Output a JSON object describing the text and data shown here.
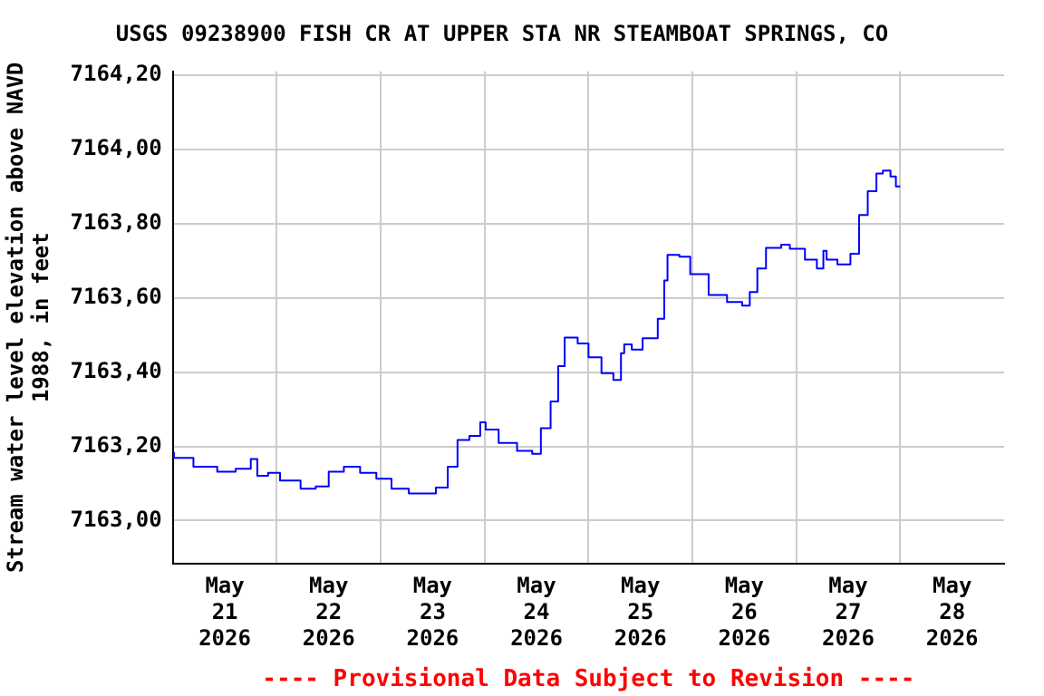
{
  "chart_data": {
    "type": "step",
    "title": "USGS 09238900 FISH CR AT UPPER STA NR STEAMBOAT SPRINGS, CO",
    "ylabel": "Stream water level elevation above NAVD 1988, in feet",
    "annotations": [
      "---- Provisional Data Subject to Revision ----"
    ],
    "x": [
      "2026-05-21T00:15",
      "2026-05-21T04:45",
      "2026-05-21T10:15",
      "2026-05-21T14:30",
      "2026-05-21T18:00",
      "2026-05-21T19:30",
      "2026-05-21T22:00",
      "2026-05-22T00:45",
      "2026-05-22T05:30",
      "2026-05-22T09:00",
      "2026-05-22T12:00",
      "2026-05-22T15:30",
      "2026-05-22T19:15",
      "2026-05-22T23:00",
      "2026-05-23T02:30",
      "2026-05-23T06:30",
      "2026-05-23T12:45",
      "2026-05-23T15:30",
      "2026-05-23T17:45",
      "2026-05-23T20:30",
      "2026-05-23T23:00",
      "2026-05-24T00:15",
      "2026-05-24T03:15",
      "2026-05-24T07:30",
      "2026-05-24T11:00",
      "2026-05-24T13:00",
      "2026-05-24T15:15",
      "2026-05-24T17:00",
      "2026-05-24T18:30",
      "2026-05-24T21:30",
      "2026-05-25T00:00",
      "2026-05-25T03:00",
      "2026-05-25T05:45",
      "2026-05-25T07:30",
      "2026-05-25T08:15",
      "2026-05-25T10:00",
      "2026-05-25T12:30",
      "2026-05-25T16:00",
      "2026-05-25T17:30",
      "2026-05-25T18:15",
      "2026-05-25T21:00",
      "2026-05-25T23:30",
      "2026-05-26T03:45",
      "2026-05-26T08:00",
      "2026-05-26T11:30",
      "2026-05-26T13:15",
      "2026-05-26T15:00",
      "2026-05-26T17:00",
      "2026-05-26T20:30",
      "2026-05-26T22:30",
      "2026-05-27T02:00",
      "2026-05-27T04:45",
      "2026-05-27T06:15",
      "2026-05-27T07:00",
      "2026-05-27T09:30",
      "2026-05-27T12:30",
      "2026-05-27T14:30",
      "2026-05-27T16:30",
      "2026-05-27T18:30",
      "2026-05-27T20:00",
      "2026-05-27T21:45",
      "2026-05-27T23:00",
      "2026-05-28T00:00"
    ],
    "series": [
      {
        "color": "#0000ff",
        "values": [
          7163.185,
          7163.169,
          7163.145,
          7163.132,
          7163.14,
          7163.166,
          7163.121,
          7163.129,
          7163.108,
          7163.086,
          7163.092,
          7163.132,
          7163.145,
          7163.129,
          7163.113,
          7163.086,
          7163.073,
          7163.089,
          7163.145,
          7163.217,
          7163.228,
          7163.265,
          7163.245,
          7163.209,
          7163.188,
          7163.18,
          7163.249,
          7163.321,
          7163.416,
          7163.493,
          7163.477,
          7163.44,
          7163.397,
          7163.379,
          7163.451,
          7163.475,
          7163.461,
          7163.491,
          7163.544,
          7163.647,
          7163.716,
          7163.711,
          7163.664,
          7163.608,
          7163.589,
          7163.579,
          7163.616,
          7163.679,
          7163.735,
          7163.743,
          7163.732,
          7163.703,
          7163.679,
          7163.727,
          7163.703,
          7163.69,
          7163.719,
          7163.823,
          7163.887,
          7163.935,
          7163.943,
          7163.927,
          7163.9
        ]
      }
    ],
    "xlim": [
      "2026-05-21T00:00",
      "2026-05-29T00:00"
    ],
    "xticks": [
      {
        "value": "2026-05-21T12:00",
        "label": "May\n21\n2026"
      },
      {
        "value": "2026-05-22T00:00",
        "label": null
      },
      {
        "value": "2026-05-22T12:00",
        "label": "May\n22\n2026"
      },
      {
        "value": "2026-05-23T00:00",
        "label": null
      },
      {
        "value": "2026-05-23T12:00",
        "label": "May\n23\n2026"
      },
      {
        "value": "2026-05-24T00:00",
        "label": null
      },
      {
        "value": "2026-05-24T12:00",
        "label": "May\n24\n2026"
      },
      {
        "value": "2026-05-25T00:00",
        "label": null
      },
      {
        "value": "2026-05-25T12:00",
        "label": "May\n25\n2026"
      },
      {
        "value": "2026-05-26T00:00",
        "label": null
      },
      {
        "value": "2026-05-26T12:00",
        "label": "May\n26\n2026"
      },
      {
        "value": "2026-05-27T00:00",
        "label": null
      },
      {
        "value": "2026-05-27T12:00",
        "label": "May\n27\n2026"
      },
      {
        "value": "2026-05-28T00:00",
        "label": null
      },
      {
        "value": "2026-05-28T12:00",
        "label": "May\n28\n2026"
      }
    ],
    "ylim": [
      7162.885,
      7164.21
    ],
    "yticks": [
      {
        "value": 7163.0,
        "label": "7163,00"
      },
      {
        "value": 7163.2,
        "label": "7163,20"
      },
      {
        "value": 7163.4,
        "label": "7163,40"
      },
      {
        "value": 7163.6,
        "label": "7163,60"
      },
      {
        "value": 7163.8,
        "label": "7163,80"
      },
      {
        "value": 7164.0,
        "label": "7164,00"
      },
      {
        "value": 7164.2,
        "label": "7164,20"
      }
    ],
    "grid": true,
    "legend": false,
    "marker": "none",
    "line_style": "solid"
  }
}
